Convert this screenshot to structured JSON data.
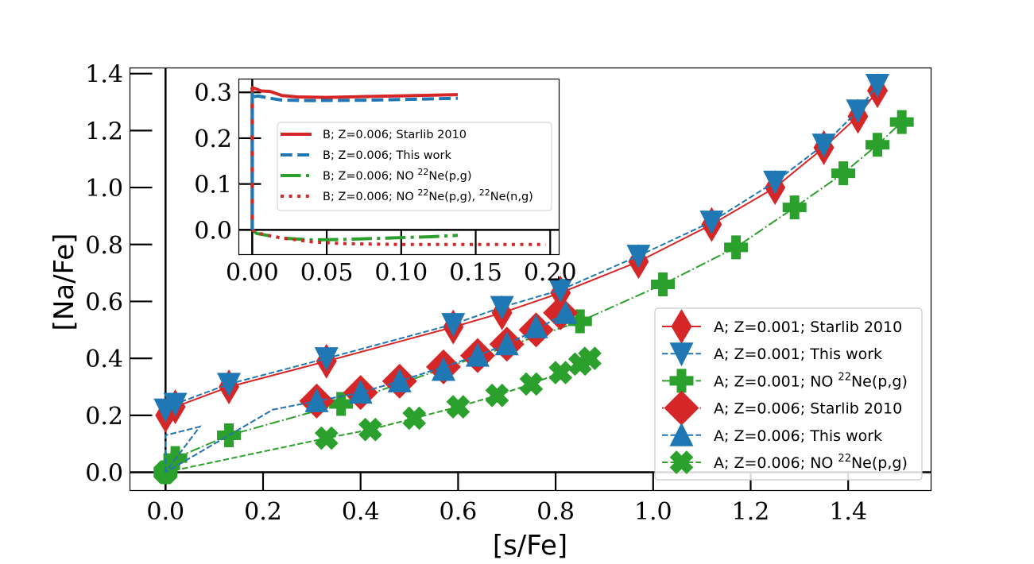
{
  "chart_data": [
    {
      "id": "main",
      "type": "line",
      "xlabel": "[s/Fe]",
      "ylabel": "[Na/Fe]",
      "xlim": [
        -0.073,
        1.57
      ],
      "ylim": [
        -0.064,
        1.42
      ],
      "xticks": [
        0.0,
        0.2,
        0.4,
        0.6,
        0.8,
        1.0,
        1.2,
        1.4
      ],
      "xtick_labels": [
        "0.0",
        "0.2",
        "0.4",
        "0.6",
        "0.8",
        "1.0",
        "1.2",
        "1.4"
      ],
      "yticks": [
        0.0,
        0.2,
        0.4,
        0.6,
        0.8,
        1.0,
        1.2,
        1.4
      ],
      "ytick_labels": [
        "0.0",
        "0.2",
        "0.4",
        "0.6",
        "0.8",
        "1.0",
        "1.2",
        "1.4"
      ],
      "zero_lines": true,
      "grid": false,
      "legend_position": "lower-right",
      "series": [
        {
          "name": "A; Z=0.001; Starlib 2010",
          "label_prefix": "A; Z=0.001; Starlib 2010",
          "label_sup": "",
          "label_suffix": "",
          "color": "#d62728",
          "marker": "thin-diamond",
          "linestyle": "solid",
          "x": [
            0.0,
            0.02,
            0.13,
            0.33,
            0.59,
            0.69,
            0.81,
            0.97,
            1.12,
            1.25,
            1.35,
            1.42,
            1.46
          ],
          "y": [
            0.2,
            0.23,
            0.3,
            0.39,
            0.51,
            0.56,
            0.63,
            0.74,
            0.87,
            1.0,
            1.14,
            1.25,
            1.34
          ]
        },
        {
          "name": "A; Z=0.001; This work",
          "label_prefix": "A; Z=0.001; This work",
          "label_sup": "",
          "label_suffix": "",
          "color": "#1f77b4",
          "marker": "triangle-down",
          "linestyle": "dashed",
          "x": [
            0.0,
            0.02,
            0.13,
            0.33,
            0.59,
            0.69,
            0.81,
            0.97,
            1.12,
            1.25,
            1.35,
            1.42,
            1.46
          ],
          "y": [
            0.22,
            0.24,
            0.31,
            0.4,
            0.52,
            0.58,
            0.64,
            0.76,
            0.88,
            1.02,
            1.15,
            1.27,
            1.36
          ]
        },
        {
          "name": "A; Z=0.001; NO 22Ne(p,g)",
          "label_prefix": "A; Z=0.001; NO ",
          "label_sup": "22",
          "label_suffix": "Ne(p,g)",
          "color": "#2ca02c",
          "marker": "plus-filled",
          "linestyle": "dashdot",
          "x": [
            0.0,
            0.02,
            0.13,
            0.36,
            0.85,
            1.02,
            1.17,
            1.29,
            1.39,
            1.46,
            1.51
          ],
          "y": [
            0.0,
            0.05,
            0.13,
            0.24,
            0.53,
            0.66,
            0.79,
            0.93,
            1.05,
            1.15,
            1.23
          ]
        },
        {
          "name": "A; Z=0.006; Starlib 2010",
          "label_prefix": "A; Z=0.006; Starlib 2010",
          "label_sup": "",
          "label_suffix": "",
          "color": "#d62728",
          "marker": "diamond",
          "linestyle": "dotted",
          "x": [
            0.0,
            0.08,
            0.22,
            0.31,
            0.4,
            0.48,
            0.57,
            0.64,
            0.7,
            0.76,
            0.81
          ],
          "y": [
            0.0,
            0.16,
            0.22,
            0.25,
            0.28,
            0.32,
            0.37,
            0.41,
            0.45,
            0.5,
            0.55
          ],
          "path_x": [
            0.0,
            0.0,
            0.07,
            0.0,
            0.22,
            0.31,
            0.4,
            0.48,
            0.57,
            0.64,
            0.7,
            0.76,
            0.81
          ],
          "path_y": [
            0.0,
            0.13,
            0.16,
            0.0,
            0.22,
            0.25,
            0.28,
            0.32,
            0.37,
            0.41,
            0.45,
            0.5,
            0.55
          ],
          "marker_x": [
            0.31,
            0.4,
            0.48,
            0.57,
            0.64,
            0.7,
            0.76,
            0.81
          ],
          "marker_y": [
            0.25,
            0.28,
            0.32,
            0.37,
            0.41,
            0.45,
            0.5,
            0.56
          ]
        },
        {
          "name": "A; Z=0.006; This work",
          "label_prefix": "A; Z=0.006; This work",
          "label_sup": "",
          "label_suffix": "",
          "color": "#1f77b4",
          "marker": "triangle-up",
          "linestyle": "dashed",
          "path_x": [
            0.0,
            0.0,
            0.07,
            0.0,
            0.22,
            0.31,
            0.4,
            0.48,
            0.57,
            0.64,
            0.7,
            0.76,
            0.81
          ],
          "path_y": [
            0.0,
            0.13,
            0.16,
            0.0,
            0.22,
            0.25,
            0.28,
            0.32,
            0.37,
            0.41,
            0.45,
            0.5,
            0.55
          ],
          "marker_x": [
            0.31,
            0.4,
            0.48,
            0.57,
            0.64,
            0.7,
            0.76,
            0.82
          ],
          "marker_y": [
            0.25,
            0.28,
            0.32,
            0.36,
            0.41,
            0.45,
            0.51,
            0.56
          ]
        },
        {
          "name": "A; Z=0.006; NO 22Ne(p,g)",
          "label_prefix": "A; Z=0.006; NO ",
          "label_sup": "22",
          "label_suffix": "Ne(p,g)",
          "color": "#2ca02c",
          "marker": "x-filled",
          "linestyle": "dashed",
          "x": [
            0.0,
            0.33,
            0.42,
            0.51,
            0.6,
            0.68,
            0.75,
            0.81,
            0.85,
            0.87
          ],
          "y": [
            0.0,
            0.12,
            0.15,
            0.19,
            0.23,
            0.27,
            0.31,
            0.35,
            0.38,
            0.4
          ]
        }
      ]
    },
    {
      "id": "inset",
      "type": "line",
      "xlabel": "",
      "ylabel": "",
      "xlim": [
        -0.009,
        0.206
      ],
      "ylim": [
        -0.054,
        0.329
      ],
      "xticks": [
        0.0,
        0.05,
        0.1,
        0.15,
        0.2
      ],
      "xtick_labels": [
        "0.00",
        "0.05",
        "0.10",
        "0.15",
        "0.20"
      ],
      "yticks": [
        0.0,
        0.1,
        0.2,
        0.3
      ],
      "ytick_labels": [
        "0.0",
        "0.1",
        "0.2",
        "0.3"
      ],
      "zero_lines": true,
      "legend_position": "center",
      "series": [
        {
          "name": "B; Z=0.006; Starlib 2010",
          "label_prefix": "B; Z=0.006; Starlib 2010",
          "label_sup": "",
          "label_sup2": "",
          "label_suffix": "",
          "label_suffix2": "",
          "color": "#d62728",
          "linestyle": "solid",
          "x": [
            0.0,
            0.0,
            0.002,
            0.006,
            0.012,
            0.02,
            0.03,
            0.05,
            0.08,
            0.11,
            0.138
          ],
          "y": [
            0.0,
            0.31,
            0.308,
            0.303,
            0.302,
            0.293,
            0.29,
            0.289,
            0.291,
            0.293,
            0.295
          ]
        },
        {
          "name": "B; Z=0.006; This work",
          "label_prefix": "B; Z=0.006; This work",
          "label_sup": "",
          "label_sup2": "",
          "label_suffix": "",
          "label_suffix2": "",
          "color": "#1f77b4",
          "linestyle": "dashed",
          "x": [
            0.0,
            0.0,
            0.004,
            0.012,
            0.02,
            0.04,
            0.08,
            0.11,
            0.138
          ],
          "y": [
            0.0,
            0.29,
            0.292,
            0.287,
            0.283,
            0.282,
            0.283,
            0.285,
            0.287
          ]
        },
        {
          "name": "B; Z=0.006; NO 22Ne(p,g)",
          "label_prefix": "B; Z=0.006; NO ",
          "label_sup": "22",
          "label_sup2": "",
          "label_suffix": "Ne(p,g)",
          "label_suffix2": "",
          "color": "#2ca02c",
          "linestyle": "dashdot",
          "x": [
            0.0,
            0.003,
            0.01,
            0.02,
            0.04,
            0.06,
            0.09,
            0.12,
            0.138
          ],
          "y": [
            0.0,
            -0.008,
            -0.012,
            -0.018,
            -0.022,
            -0.021,
            -0.018,
            -0.015,
            -0.012
          ]
        },
        {
          "name": "B; Z=0.006; NO 22Ne(p,g), 22Ne(n,g)",
          "label_prefix": "B; Z=0.006; NO ",
          "label_sup": "22",
          "label_sup2": "22",
          "label_suffix": "Ne(p,g), ",
          "label_suffix2": "Ne(n,g)",
          "color": "#d62728",
          "linestyle": "dotted",
          "x": [
            0.0,
            0.005,
            0.012,
            0.02,
            0.04,
            0.06,
            0.1,
            0.15,
            0.197
          ],
          "y": [
            0.0,
            -0.008,
            -0.013,
            -0.018,
            -0.026,
            -0.03,
            -0.032,
            -0.032,
            -0.032
          ]
        }
      ]
    }
  ]
}
